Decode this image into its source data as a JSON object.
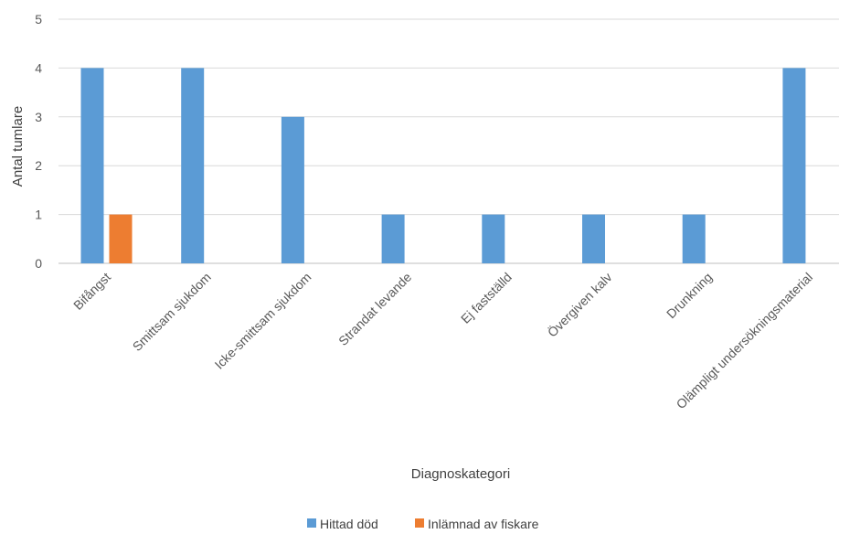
{
  "chart_data": {
    "type": "bar",
    "categories": [
      "Bifångst",
      "Smittsam sjukdom",
      "Icke-smittsam sjukdom",
      "Strandat levande",
      "Ej fastställd",
      "Övergiven kalv",
      "Drunkning",
      "Olämpligt undersökningsmaterial"
    ],
    "series": [
      {
        "name": "Hittad död",
        "values": [
          4,
          4,
          3,
          1,
          1,
          1,
          1,
          4
        ],
        "color": "#5B9BD5"
      },
      {
        "name": "Inlämnad av fiskare",
        "values": [
          1,
          0,
          0,
          0,
          0,
          0,
          0,
          0
        ],
        "color": "#ED7D31"
      }
    ],
    "xlabel": "Diagnoskategori",
    "ylabel": "Antal tumlare",
    "ylim": [
      0,
      5
    ],
    "yticks": [
      0,
      1,
      2,
      3,
      4,
      5
    ],
    "grid": true,
    "legend": "bottom"
  }
}
